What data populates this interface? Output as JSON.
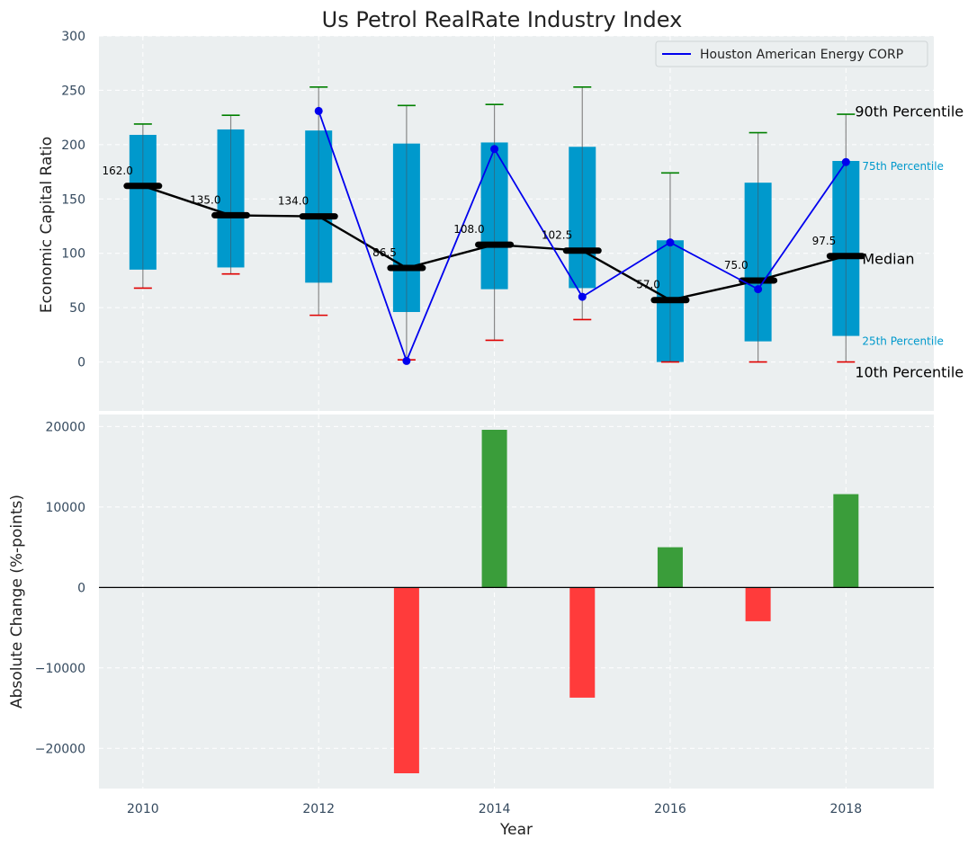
{
  "chart_data": [
    {
      "type": "boxplot-line",
      "title": "Us Petrol RealRate Industry Index",
      "xlabel": "",
      "ylabel": "Economic Capital Ratio",
      "ylim": [
        -45,
        300
      ],
      "xlim": [
        2009.5,
        2019
      ],
      "yticks": [
        0,
        50,
        100,
        150,
        200,
        250,
        300
      ],
      "ytick_labels": [
        "0",
        "50",
        "100",
        "150",
        "200",
        "250",
        "300"
      ],
      "grid": true,
      "years": [
        2010,
        2011,
        2012,
        2013,
        2014,
        2015,
        2016,
        2017,
        2018
      ],
      "p10": [
        68,
        81,
        43,
        2,
        20,
        39,
        0,
        0,
        0
      ],
      "p25": [
        85,
        87,
        73,
        46,
        67,
        68,
        0,
        19,
        24
      ],
      "median": [
        162.0,
        135.0,
        134.0,
        86.5,
        108.0,
        102.5,
        57.0,
        75.0,
        97.5
      ],
      "median_labels": [
        "162.0",
        "135.0",
        "134.0",
        "86.5",
        "108.0",
        "102.5",
        "57.0",
        "75.0",
        "97.5"
      ],
      "p75": [
        209,
        214,
        213,
        201,
        202,
        198,
        112,
        165,
        185
      ],
      "p90": [
        219,
        227,
        253,
        236,
        237,
        253,
        174,
        211,
        228
      ],
      "series": [
        {
          "name": "Houston American Energy CORP",
          "color": "#0000ee",
          "x": [
            2012,
            2013,
            2014,
            2015,
            2016,
            2017,
            2018
          ],
          "values": [
            231,
            1,
            196,
            60,
            110,
            67,
            184
          ]
        }
      ],
      "percentile_labels": {
        "p90": "90th Percentile",
        "p75": "75th Percentile",
        "median": "Median",
        "p25": "25th Percentile",
        "p10": "10th Percentile"
      },
      "legend": {
        "entries": [
          "Houston American Energy CORP"
        ],
        "placement": "top-right"
      }
    },
    {
      "type": "bar",
      "xlabel": "Year",
      "ylabel": "Absolute Change (%-points)",
      "ylim": [
        -25000,
        21500
      ],
      "yticks": [
        -20000,
        -10000,
        0,
        10000,
        20000
      ],
      "ytick_labels": [
        "−20000",
        "−10000",
        "0",
        "10000",
        "20000"
      ],
      "xticks": [
        2010,
        2012,
        2014,
        2016,
        2018
      ],
      "xtick_labels": [
        "2010",
        "2012",
        "2014",
        "2016",
        "2018"
      ],
      "grid": true,
      "categories": [
        2013,
        2014,
        2015,
        2016,
        2017,
        2018
      ],
      "values": [
        -23100,
        19600,
        -13700,
        5000,
        -4200,
        11600
      ],
      "positive_color": "#3a9d3a",
      "negative_color": "#ff3b3b"
    }
  ]
}
